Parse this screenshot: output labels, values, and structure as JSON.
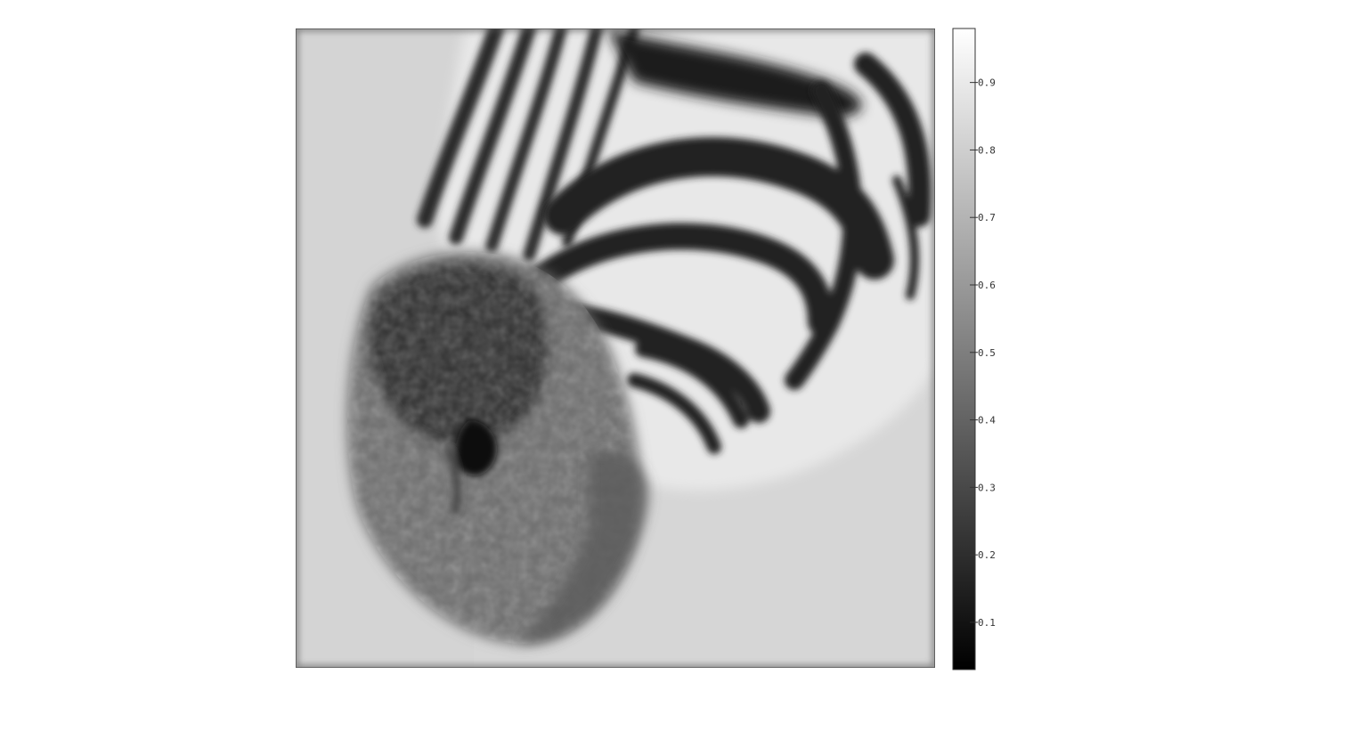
{
  "chart_data": {
    "type": "heatmap",
    "title": "",
    "xlabel": "",
    "ylabel": "",
    "colormap": "gray",
    "colorbar": {
      "range": [
        0.03,
        0.98
      ],
      "ticks": [
        0.1,
        0.2,
        0.3,
        0.4,
        0.5,
        0.6,
        0.7,
        0.8,
        0.9
      ],
      "tick_labels": [
        "0.1",
        "0.2",
        "0.3",
        "0.4",
        "0.5",
        "0.6",
        "0.7",
        "0.8",
        "0.9"
      ],
      "position": "right"
    },
    "image_content": "blurred grayscale image",
    "grid": false
  },
  "colors": {
    "background": "#ffffff",
    "frame": "#4a4a4a",
    "ticks": "#333333"
  }
}
